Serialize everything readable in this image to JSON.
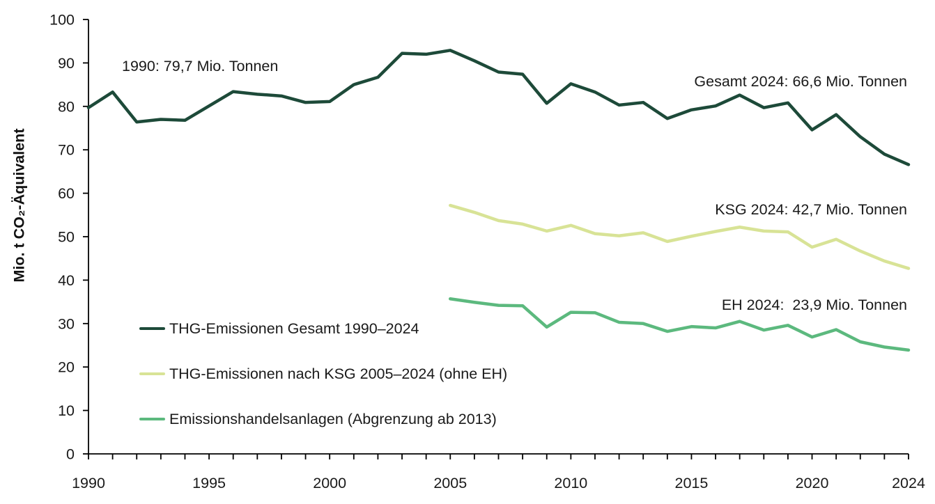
{
  "figure": {
    "y_axis_title": "Mio. t CO₂-Äquivalent",
    "annotations": {
      "start_1990": "1990: 79,7 Mio. Tonnen",
      "gesamt_2024": "Gesamt 2024: 66,6 Mio. Tonnen",
      "ksg_2024": "KSG 2024: 42,7 Mio. Tonnen",
      "eh_2024": "EH 2024:  23,9 Mio. Tonnen"
    }
  },
  "chart_data": {
    "type": "line",
    "title": "",
    "xlabel": "",
    "ylabel": "Mio. t CO₂-Äquivalent",
    "xlim": [
      1990,
      2024
    ],
    "ylim": [
      0,
      100
    ],
    "xticks": [
      1990,
      1995,
      2000,
      2005,
      2010,
      2015,
      2020,
      2024
    ],
    "minor_xtick_every": 1,
    "ytick_step": 10,
    "grid": false,
    "legend_position": "inside-lower-left",
    "axis_color": "#000000",
    "tick_label_color": "#1a1a1a",
    "series": [
      {
        "id": "gesamt",
        "label": "THG-Emissionen Gesamt 1990–2024",
        "color": "#1d4a39",
        "start_year": 1990,
        "values": [
          79.7,
          83.3,
          76.4,
          77.0,
          76.8,
          80.1,
          83.4,
          82.8,
          82.4,
          80.9,
          81.1,
          85.0,
          86.7,
          92.2,
          92.0,
          92.9,
          90.5,
          87.9,
          87.4,
          80.7,
          85.2,
          83.3,
          80.3,
          80.9,
          77.2,
          79.2,
          80.1,
          82.6,
          79.7,
          80.8,
          74.6,
          78.1,
          73.0,
          69.0,
          66.6
        ]
      },
      {
        "id": "ksg",
        "label": "THG-Emissionen nach KSG 2005–2024 (ohne EH)",
        "color": "#d8e396",
        "start_year": 2005,
        "values": [
          57.2,
          55.6,
          53.7,
          52.9,
          51.3,
          52.6,
          50.7,
          50.2,
          50.9,
          48.9,
          50.1,
          51.2,
          52.2,
          51.3,
          51.1,
          47.6,
          49.4,
          46.7,
          44.4,
          42.7
        ]
      },
      {
        "id": "eh",
        "label": "Emissionshandelsanlagen (Abgrenzung ab 2013)",
        "color": "#5cb97e",
        "start_year": 2005,
        "values": [
          35.7,
          34.9,
          34.2,
          34.1,
          29.2,
          32.6,
          32.5,
          30.3,
          30.0,
          28.2,
          29.3,
          29.0,
          30.5,
          28.5,
          29.6,
          26.9,
          28.6,
          25.8,
          24.6,
          23.9
        ]
      }
    ]
  }
}
